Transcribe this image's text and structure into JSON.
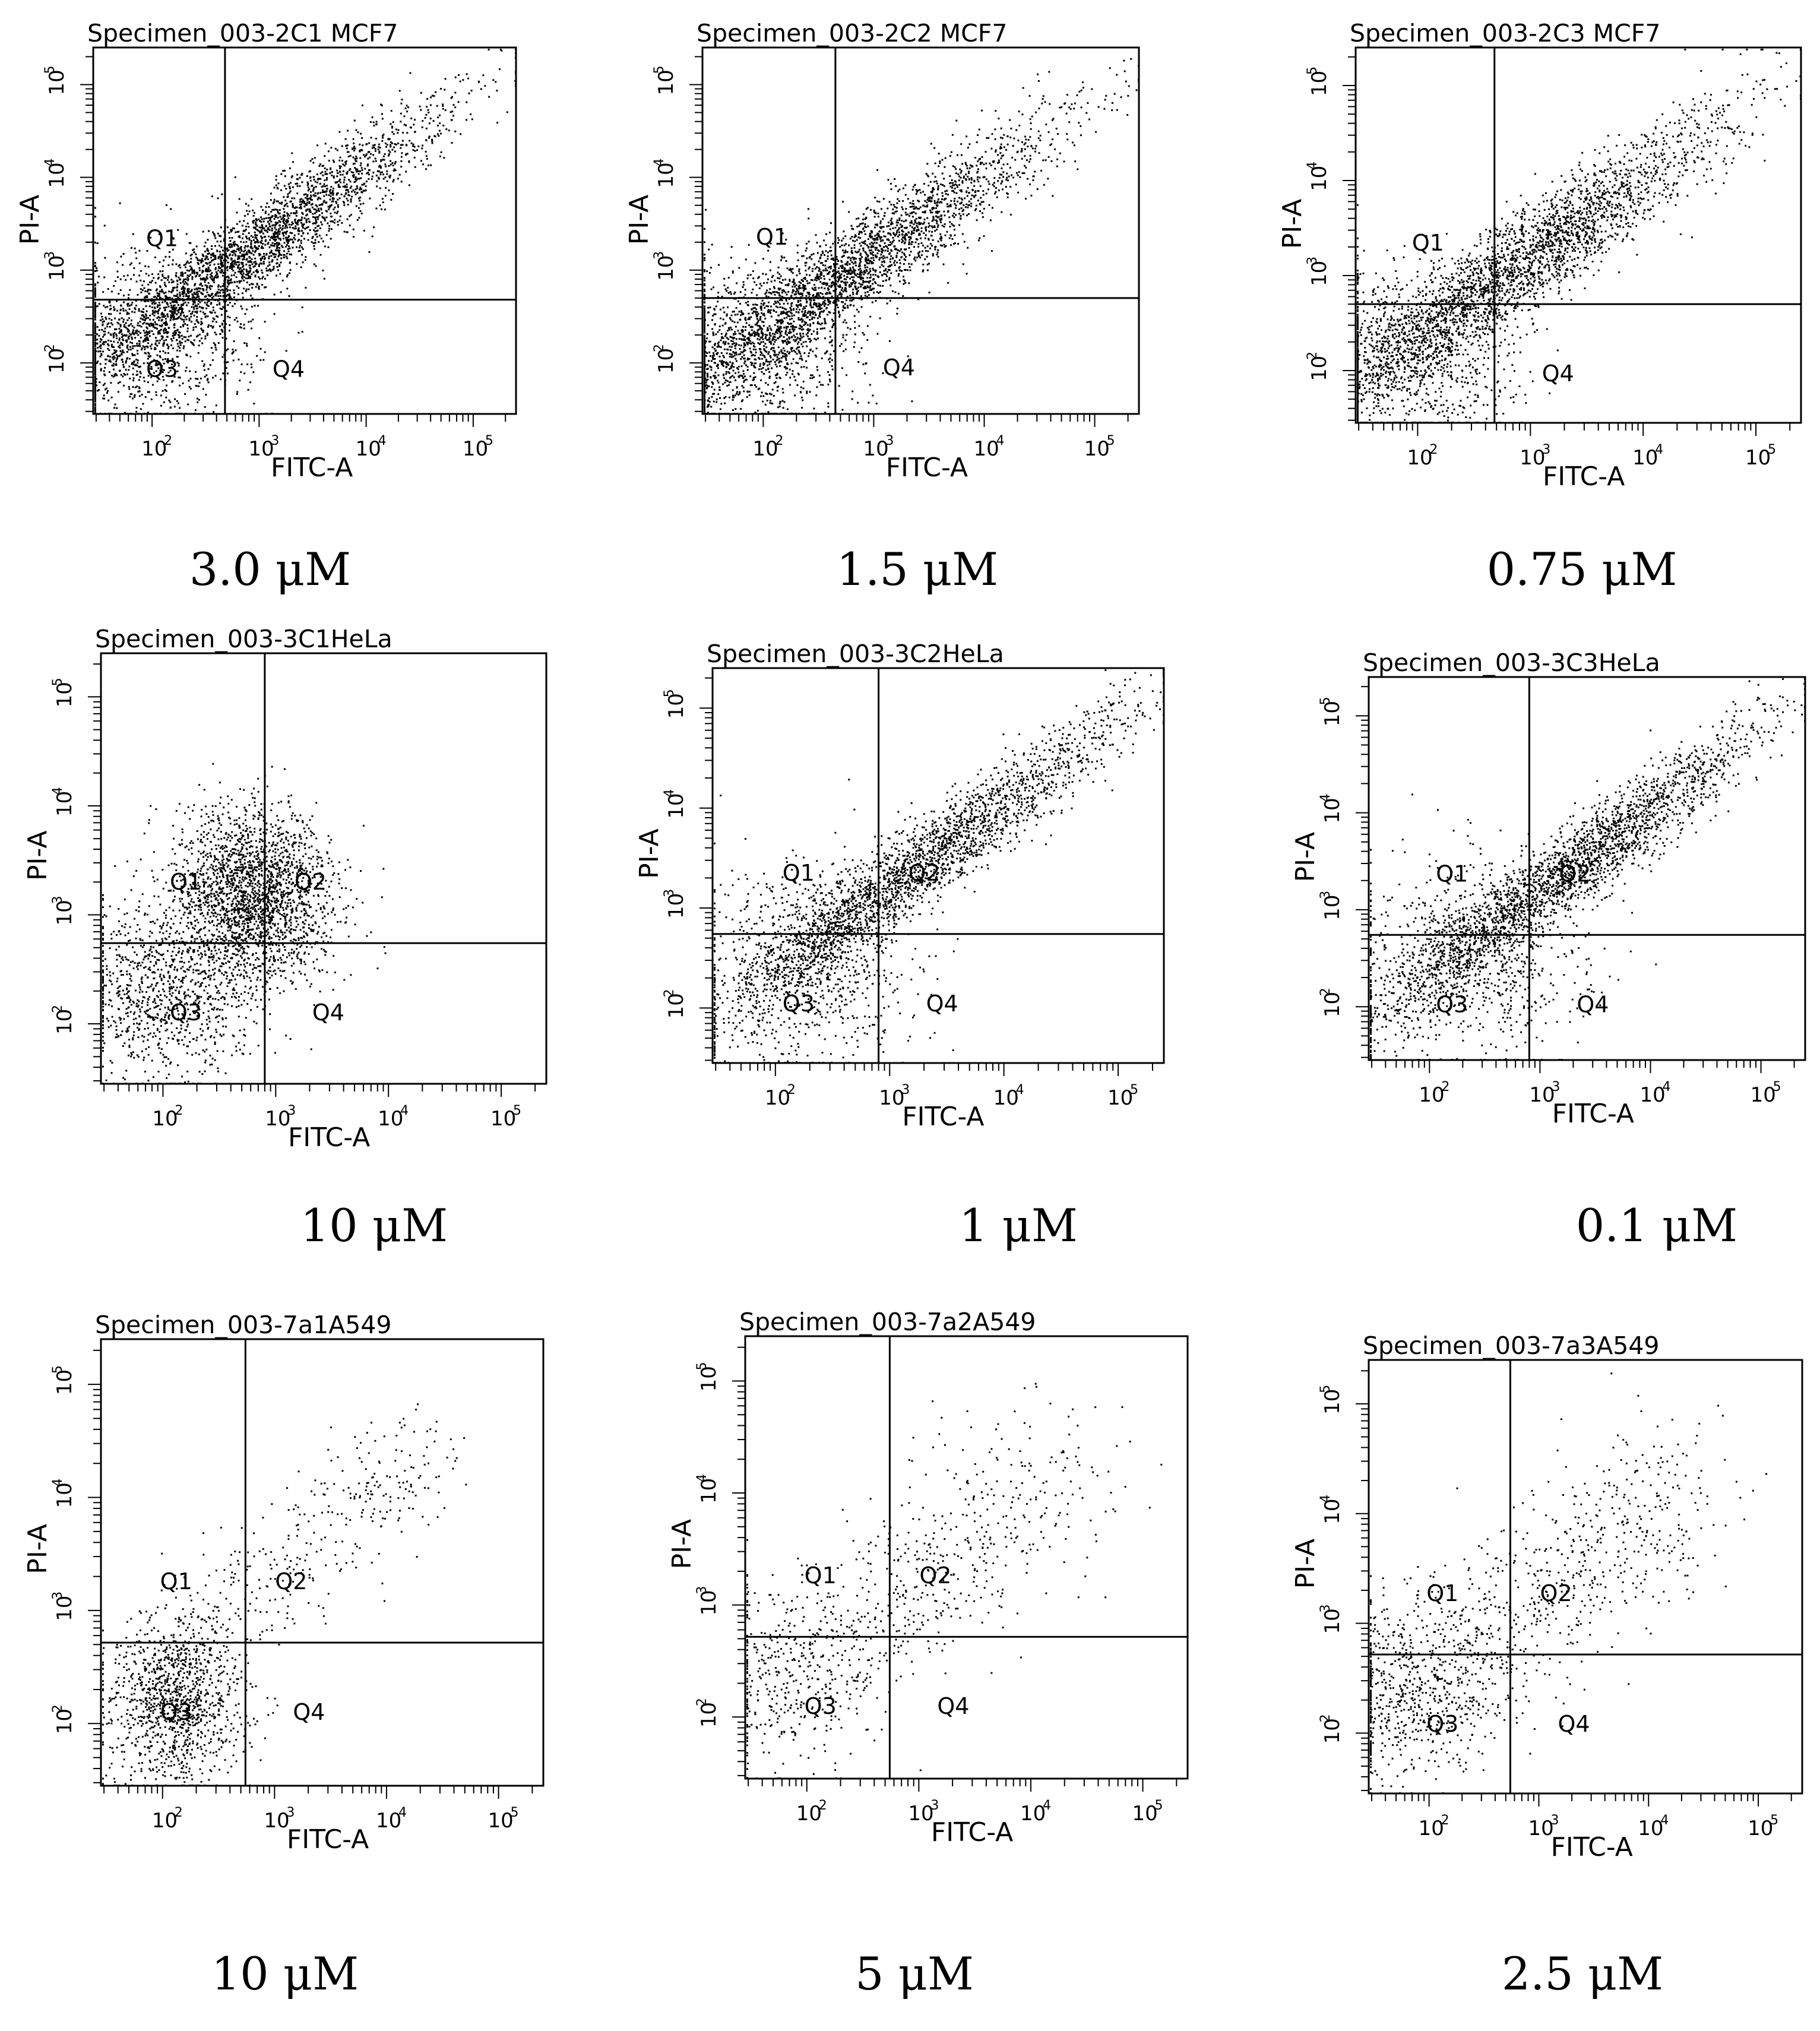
{
  "chart_data": [
    {
      "type": "scatter",
      "title": "Specimen_003-2C1 MCF7",
      "xlabel": "FITC-A",
      "ylabel": "PI-A",
      "x_ticks": [
        "10",
        "10",
        "10",
        "10"
      ],
      "x_tick_exps": [
        "2",
        "3",
        "4",
        "5"
      ],
      "y_ticks": [
        "10",
        "10",
        "10",
        "10"
      ],
      "y_tick_exps": [
        "2",
        "3",
        "4",
        "5"
      ],
      "quadrants": {
        "tl": "Q1",
        "tr": "",
        "bl": "Q3",
        "br": "Q4"
      },
      "concentration": "3.0 μM",
      "gate": {
        "x": 480,
        "y": 480
      },
      "cloud": {
        "n": 3600,
        "shape": "diagonal",
        "x_center": 800,
        "y_center": 1600,
        "spread": 0.55
      }
    },
    {
      "type": "scatter",
      "title": "Specimen_003-2C2 MCF7",
      "xlabel": "FITC-A",
      "ylabel": "PI-A",
      "x_ticks": [
        "10",
        "10",
        "10",
        "10"
      ],
      "x_tick_exps": [
        "2",
        "3",
        "4",
        "5"
      ],
      "y_ticks": [
        "10",
        "10",
        "10",
        "10"
      ],
      "y_tick_exps": [
        "2",
        "3",
        "4",
        "5"
      ],
      "quadrants": {
        "tl": "Q1",
        "tr": "",
        "bl": "",
        "br": "Q4"
      },
      "concentration": "1.5 μM",
      "gate": {
        "x": 450,
        "y": 500
      },
      "cloud": {
        "n": 3600,
        "shape": "diagonal",
        "x_center": 600,
        "y_center": 1000,
        "spread": 0.6
      }
    },
    {
      "type": "scatter",
      "title": "Specimen_003-2C3 MCF7",
      "xlabel": "FITC-A",
      "ylabel": "PI-A",
      "x_ticks": [
        "10",
        "10",
        "10",
        "10"
      ],
      "x_tick_exps": [
        "2",
        "3",
        "4",
        "5"
      ],
      "y_ticks": [
        "10",
        "10",
        "10",
        "10"
      ],
      "y_tick_exps": [
        "2",
        "3",
        "4",
        "5"
      ],
      "quadrants": {
        "tl": "Q1",
        "tr": "",
        "bl": "",
        "br": "Q4"
      },
      "concentration": "0.75 μM",
      "gate": {
        "x": 480,
        "y": 500
      },
      "cloud": {
        "n": 3600,
        "shape": "diagonal",
        "x_center": 700,
        "y_center": 1200,
        "spread": 0.6
      }
    },
    {
      "type": "scatter",
      "title": "Specimen_003-3C1HeLa",
      "xlabel": "FITC-A",
      "ylabel": "PI-A",
      "x_ticks": [
        "10",
        "10",
        "10",
        "10"
      ],
      "x_tick_exps": [
        "2",
        "3",
        "4",
        "5"
      ],
      "y_ticks": [
        "10",
        "10",
        "10",
        "10"
      ],
      "y_tick_exps": [
        "2",
        "3",
        "4",
        "5"
      ],
      "quadrants": {
        "tl": "Q1",
        "tr": "Q2",
        "bl": "Q3",
        "br": "Q4"
      },
      "concentration": "10 μM",
      "gate": {
        "x": 800,
        "y": 550
      },
      "cloud": {
        "n": 3200,
        "shape": "blob",
        "x_center": 600,
        "y_center": 1500,
        "spread": 0.5
      }
    },
    {
      "type": "scatter",
      "title": "Specimen_003-3C2HeLa",
      "xlabel": "FITC-A",
      "ylabel": "PI-A",
      "x_ticks": [
        "10",
        "10",
        "10",
        "10"
      ],
      "x_tick_exps": [
        "2",
        "3",
        "4",
        "5"
      ],
      "y_ticks": [
        "10",
        "10",
        "10",
        "10"
      ],
      "y_tick_exps": [
        "2",
        "3",
        "4",
        "5"
      ],
      "quadrants": {
        "tl": "Q1",
        "tr": "Q2",
        "bl": "Q3",
        "br": "Q4"
      },
      "concentration": "1 μM",
      "gate": {
        "x": 800,
        "y": 550
      },
      "cloud": {
        "n": 3200,
        "shape": "diagonal",
        "x_center": 1600,
        "y_center": 2400,
        "spread": 0.5
      }
    },
    {
      "type": "scatter",
      "title": "Specimen_003-3C3HeLa",
      "xlabel": "FITC-A",
      "ylabel": "PI-A",
      "x_ticks": [
        "10",
        "10",
        "10",
        "10"
      ],
      "x_tick_exps": [
        "2",
        "3",
        "4",
        "5"
      ],
      "y_ticks": [
        "10",
        "10",
        "10",
        "10"
      ],
      "y_tick_exps": [
        "2",
        "3",
        "4",
        "5"
      ],
      "quadrants": {
        "tl": "Q1",
        "tr": "Q2",
        "bl": "Q3",
        "br": "Q4"
      },
      "concentration": "0.1 μM",
      "gate": {
        "x": 800,
        "y": 550
      },
      "cloud": {
        "n": 3200,
        "shape": "diagonal",
        "x_center": 1800,
        "y_center": 2600,
        "spread": 0.5
      }
    },
    {
      "type": "scatter",
      "title": "Specimen_003-7a1A549",
      "xlabel": "FITC-A",
      "ylabel": "PI-A",
      "x_ticks": [
        "10",
        "10",
        "10",
        "10"
      ],
      "x_tick_exps": [
        "2",
        "3",
        "4",
        "5"
      ],
      "y_ticks": [
        "10",
        "10",
        "10",
        "10"
      ],
      "y_tick_exps": [
        "2",
        "3",
        "4",
        "5"
      ],
      "quadrants": {
        "tl": "Q1",
        "tr": "Q2",
        "bl": "Q3",
        "br": "Q4"
      },
      "concentration": "10 μM",
      "gate": {
        "x": 550,
        "y": 520
      },
      "cloud": {
        "n": 1500,
        "shape": "low",
        "x_center": 80,
        "y_center": 150,
        "spread": 0.45
      }
    },
    {
      "type": "scatter",
      "title": "Specimen_003-7a2A549",
      "xlabel": "FITC-A",
      "ylabel": "PI-A",
      "x_ticks": [
        "10",
        "10",
        "10",
        "10"
      ],
      "x_tick_exps": [
        "2",
        "3",
        "4",
        "5"
      ],
      "y_ticks": [
        "10",
        "10",
        "10",
        "10"
      ],
      "y_tick_exps": [
        "2",
        "3",
        "4",
        "5"
      ],
      "quadrants": {
        "tl": "Q1",
        "tr": "Q2",
        "bl": "Q3",
        "br": "Q4"
      },
      "concentration": "5 μM",
      "gate": {
        "x": 550,
        "y": 520
      },
      "cloud": {
        "n": 900,
        "shape": "sparse",
        "x_center": 400,
        "y_center": 900,
        "spread": 0.55
      }
    },
    {
      "type": "scatter",
      "title": "Specimen_003-7a3A549",
      "xlabel": "FITC-A",
      "ylabel": "PI-A",
      "x_ticks": [
        "10",
        "10",
        "10",
        "10"
      ],
      "x_tick_exps": [
        "2",
        "3",
        "4",
        "5"
      ],
      "y_ticks": [
        "10",
        "10",
        "10",
        "10"
      ],
      "y_tick_exps": [
        "2",
        "3",
        "4",
        "5"
      ],
      "quadrants": {
        "tl": "Q1",
        "tr": "Q2",
        "bl": "Q3",
        "br": "Q4"
      },
      "concentration": "2.5 μM",
      "gate": {
        "x": 550,
        "y": 520
      },
      "cloud": {
        "n": 1300,
        "shape": "sparse",
        "x_center": 300,
        "y_center": 800,
        "spread": 0.55
      }
    }
  ]
}
